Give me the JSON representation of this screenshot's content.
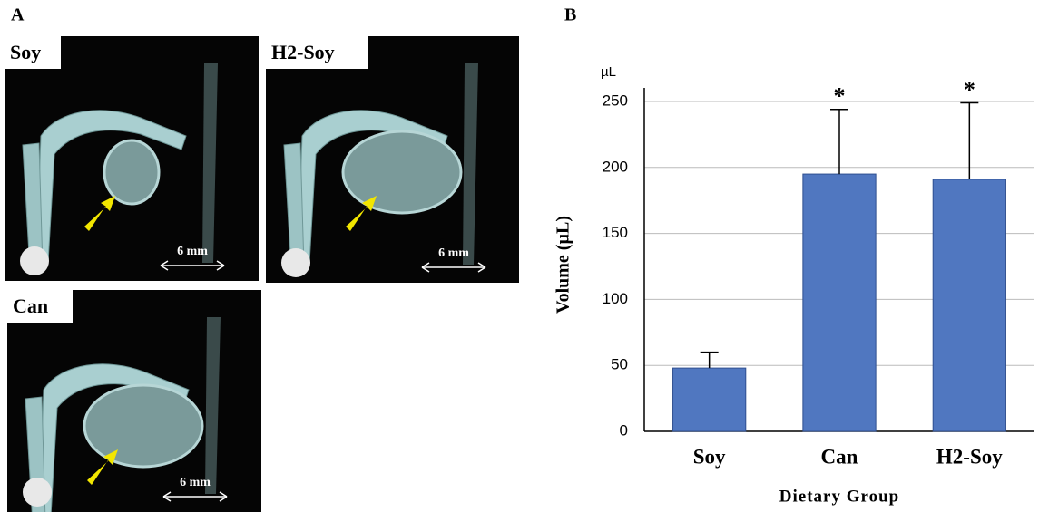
{
  "panel_a": {
    "label": "A",
    "images": [
      {
        "label": "Soy",
        "scale": "6 mm"
      },
      {
        "label": "H2-Soy",
        "scale": "6 mm"
      },
      {
        "label": "Can",
        "scale": "6 mm"
      }
    ]
  },
  "chart_data": {
    "type": "bar",
    "panel_label": "B",
    "unit_label": "µL",
    "y_label": "Volume (µL)",
    "x_label": "Dietary Group",
    "categories": [
      "Soy",
      "Can",
      "H2-Soy"
    ],
    "values": [
      48,
      195,
      191
    ],
    "errors": [
      12,
      49,
      58
    ],
    "annotations": [
      null,
      "*",
      "*"
    ],
    "color": "#5077c0",
    "ylim": [
      0,
      250
    ],
    "yticks": [
      0,
      50,
      100,
      150,
      200,
      250
    ],
    "grid": true
  }
}
